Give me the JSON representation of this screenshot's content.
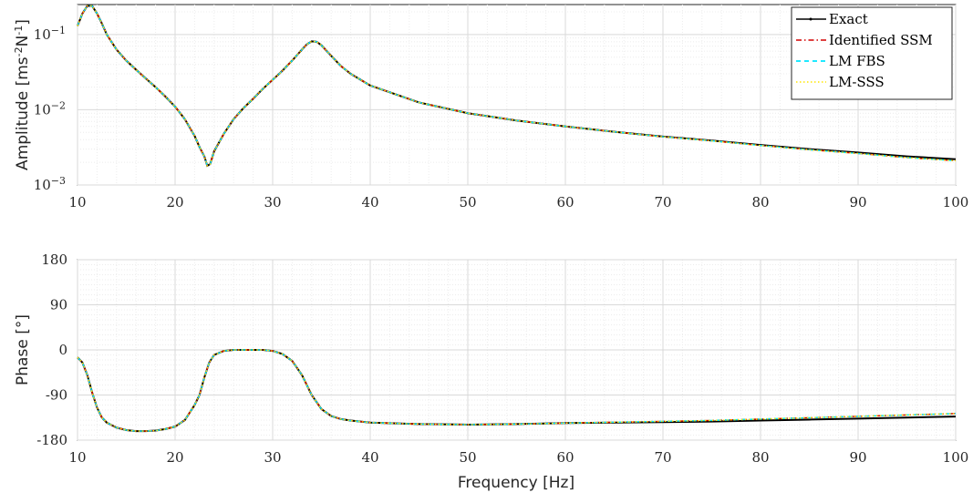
{
  "chart_data": [
    {
      "type": "line",
      "ylabel_parts": [
        "Amplitude [ms",
        "-2",
        "N",
        "-1",
        "]"
      ],
      "yscale": "log",
      "ylim": [
        0.001,
        0.25
      ],
      "xlim": [
        10,
        100
      ],
      "xticks": [
        "10",
        "20",
        "30",
        "40",
        "50",
        "60",
        "70",
        "80",
        "90",
        "100"
      ],
      "yticks": [
        {
          "value": 0.001,
          "base": "10",
          "exp": "−3"
        },
        {
          "value": 0.01,
          "base": "10",
          "exp": "−2"
        },
        {
          "value": 0.1,
          "base": "10",
          "exp": "−1"
        }
      ],
      "grid": true,
      "legend_position": "top-right",
      "series": [
        {
          "name": "Exact",
          "color": "#000000",
          "style": "solid-dot"
        },
        {
          "name": "Identified SSM",
          "color": "#d40000",
          "style": "dashdot"
        },
        {
          "name": "LM FBS",
          "color": "#00e5ff",
          "style": "dashed"
        },
        {
          "name": "LM-SSS",
          "color": "#ffe600",
          "style": "dotted"
        }
      ],
      "x": [
        10,
        10.5,
        11,
        11.5,
        12,
        12.5,
        13,
        14,
        15,
        16,
        17,
        18,
        19,
        20,
        21,
        22,
        22.5,
        23,
        23.3,
        23.6,
        24,
        25,
        26,
        27,
        28,
        29,
        30,
        31,
        32,
        33,
        33.5,
        34,
        34.5,
        35,
        36,
        37,
        38,
        40,
        45,
        50,
        55,
        60,
        65,
        70,
        75,
        80,
        85,
        90,
        95,
        100
      ],
      "y_exact": [
        0.13,
        0.19,
        0.24,
        0.24,
        0.19,
        0.14,
        0.1,
        0.063,
        0.045,
        0.034,
        0.026,
        0.02,
        0.015,
        0.011,
        0.0075,
        0.0045,
        0.0032,
        0.0024,
        0.0018,
        0.0019,
        0.0028,
        0.0048,
        0.0075,
        0.0105,
        0.014,
        0.019,
        0.025,
        0.033,
        0.045,
        0.063,
        0.074,
        0.081,
        0.08,
        0.072,
        0.052,
        0.038,
        0.03,
        0.021,
        0.0125,
        0.009,
        0.0072,
        0.006,
        0.0051,
        0.0044,
        0.0039,
        0.0034,
        0.003,
        0.0027,
        0.0024,
        0.0022
      ],
      "y_identified_end": 0.0021
    },
    {
      "type": "line",
      "ylabel": "Phase [°]",
      "xlabel": "Frequency [Hz]",
      "ylim": [
        -180,
        180
      ],
      "xlim": [
        10,
        100
      ],
      "xticks": [
        "10",
        "20",
        "30",
        "40",
        "50",
        "60",
        "70",
        "80",
        "90",
        "100"
      ],
      "yticks": [
        "180",
        "90",
        "0",
        "-90",
        "-180"
      ],
      "grid": true,
      "x": [
        10,
        10.5,
        11,
        11.5,
        12,
        12.5,
        13,
        14,
        15,
        16,
        17,
        18,
        19,
        20,
        21,
        22,
        22.5,
        23,
        23.5,
        24,
        25,
        26,
        27,
        28,
        29,
        30,
        31,
        32,
        33,
        34,
        35,
        36,
        37,
        38,
        40,
        45,
        50,
        55,
        60,
        65,
        70,
        75,
        80,
        85,
        90,
        95,
        100
      ],
      "y_exact": [
        -15,
        -25,
        -50,
        -85,
        -115,
        -135,
        -145,
        -155,
        -160,
        -162,
        -162,
        -161,
        -158,
        -153,
        -140,
        -110,
        -90,
        -55,
        -25,
        -10,
        -2,
        0,
        0,
        0,
        0,
        -2,
        -8,
        -22,
        -50,
        -90,
        -118,
        -132,
        -138,
        -141,
        -145,
        -148,
        -149,
        -148,
        -146,
        -145,
        -144,
        -143,
        -141,
        -139,
        -137,
        -135,
        -133
      ],
      "y_identified_end": -127
    }
  ]
}
